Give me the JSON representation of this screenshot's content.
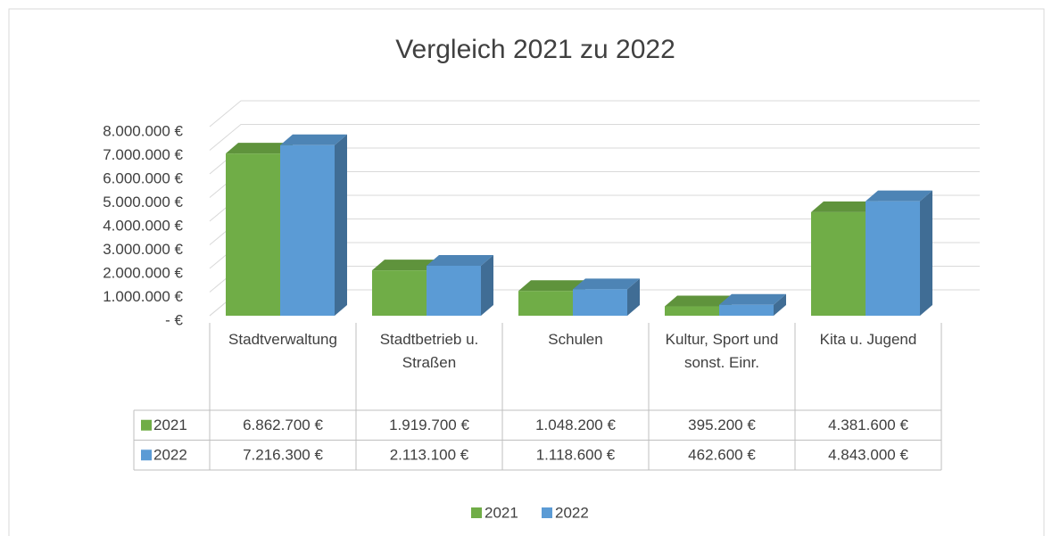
{
  "chart_data": {
    "type": "bar3d",
    "title": "Vergleich 2021 zu 2022",
    "categories": [
      "Stadtverwaltung",
      "Stadtbetrieb u. Straßen",
      "Schulen",
      "Kultur, Sport und sonst. Einr.",
      "Kita u. Jugend"
    ],
    "series": [
      {
        "name": "2021",
        "color": "#70ad47",
        "values": [
          6862700,
          1919700,
          1048200,
          395200,
          4381600
        ],
        "value_labels": [
          "6.862.700 €",
          "1.919.700 €",
          "1.048.200 €",
          "395.200 €",
          "4.381.600 €"
        ]
      },
      {
        "name": "2022",
        "color": "#5b9bd5",
        "values": [
          7216300,
          2113100,
          1118600,
          462600,
          4843000
        ],
        "value_labels": [
          "7.216.300 €",
          "2.113.100 €",
          "1.118.600 €",
          "462.600 €",
          "4.843.000 €"
        ]
      }
    ],
    "ylim": [
      0,
      8000000
    ],
    "yticks": [
      {
        "value": 0,
        "label": "-   €"
      },
      {
        "value": 1000000,
        "label": "1.000.000 €"
      },
      {
        "value": 2000000,
        "label": "2.000.000 €"
      },
      {
        "value": 3000000,
        "label": "3.000.000 €"
      },
      {
        "value": 4000000,
        "label": "4.000.000 €"
      },
      {
        "value": 5000000,
        "label": "5.000.000 €"
      },
      {
        "value": 6000000,
        "label": "6.000.000 €"
      },
      {
        "value": 7000000,
        "label": "7.000.000 €"
      },
      {
        "value": 8000000,
        "label": "8.000.000 €"
      }
    ],
    "grid": true,
    "legend": "bottom"
  }
}
